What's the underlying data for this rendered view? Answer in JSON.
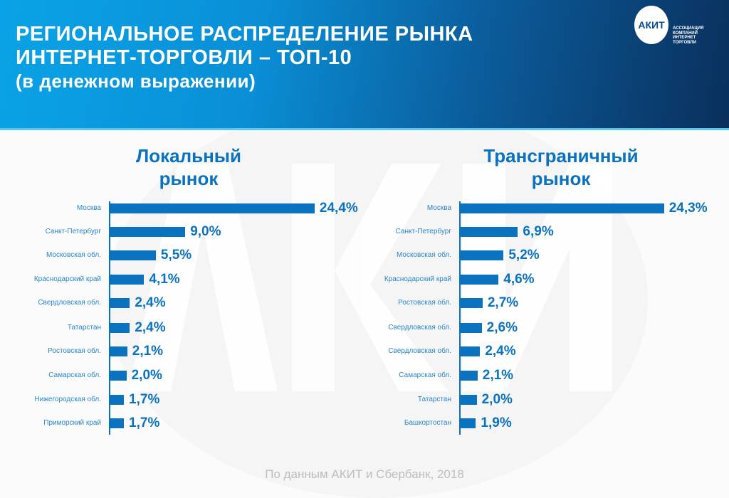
{
  "header": {
    "title_lines": [
      "РЕГИОНАЛЬНОЕ РАСПРЕДЕЛЕНИЕ  РЫНКА",
      "ИНТЕРНЕТ-ТОРГОВЛИ – ТОП-10",
      "(в денежном выражении)"
    ],
    "logo": "АКИТ",
    "logo_sub": [
      "АССОЦИАЦИЯ",
      "КОМПАНИЙ",
      "ИНТЕРНЕТ",
      "ТОРГОВЛИ"
    ]
  },
  "watermark": "АКИТ",
  "footer": "По данным АКИТ и Сбербанк, 2018",
  "chart_data": [
    {
      "type": "bar",
      "orientation": "horizontal",
      "title": "Локальный рынок",
      "unit": "%",
      "categories": [
        "Москва",
        "Санкт-Петербург",
        "Московская обл.",
        "Краснодарский край",
        "Свердловская обл.",
        "Татарстан",
        "Ростовская обл.",
        "Самарская обл.",
        "Нижегородская обл.",
        "Приморский край"
      ],
      "values": [
        24.4,
        9.0,
        5.5,
        4.1,
        2.4,
        2.4,
        2.1,
        2.0,
        1.7,
        1.7
      ],
      "labels": [
        "24,4%",
        "9,0%",
        "5,5%",
        "4,1%",
        "2,4%",
        "2,4%",
        "2,1%",
        "2,0%",
        "1,7%",
        "1,7%"
      ]
    },
    {
      "type": "bar",
      "orientation": "horizontal",
      "title": "Трансграничный рынок",
      "unit": "%",
      "categories": [
        "Москва",
        "Санкт-Петербург",
        "Московская обл.",
        "Краснодарский край",
        "Ростовская обл.",
        "Свердловская обл.",
        "Свердловская обл.",
        "Самарская обл.",
        "Татарстан",
        "Башкортостан"
      ],
      "values": [
        24.3,
        6.9,
        5.2,
        4.6,
        2.7,
        2.6,
        2.4,
        2.1,
        2.0,
        1.9
      ],
      "labels": [
        "24,3%",
        "6,9%",
        "5,2%",
        "4,6%",
        "2,7%",
        "2,6%",
        "2,4%",
        "2,1%",
        "2,0%",
        "1,9%"
      ]
    }
  ],
  "colors": {
    "bar": "#0a72bf",
    "label": "#2a86c8"
  }
}
